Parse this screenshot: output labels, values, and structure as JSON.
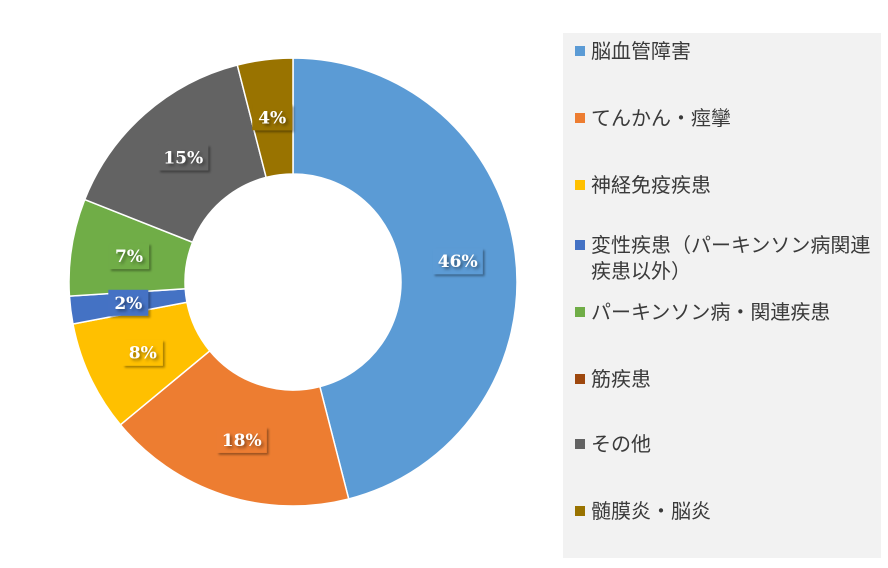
{
  "chart_data": {
    "type": "pie",
    "subtype": "donut",
    "start_angle_deg": 0,
    "direction": "clockwise",
    "legend_position": "right",
    "series": [
      {
        "name": "脳血管障害",
        "value": 46,
        "label": "46%",
        "color": "#5b9bd5"
      },
      {
        "name": "てんかん・痙攣",
        "value": 18,
        "label": "18%",
        "color": "#ed7d31"
      },
      {
        "name": "神経免疫疾患",
        "value": 8,
        "label": "8%",
        "color": "#ffc000"
      },
      {
        "name": "変性疾患（パーキンソン病関連疾患以外）",
        "value": 2,
        "label": "2%",
        "color": "#4472c4"
      },
      {
        "name": "パーキンソン病・関連疾患",
        "value": 7,
        "label": "7%",
        "color": "#70ad47"
      },
      {
        "name": "筋疾患",
        "value": 0,
        "label": "",
        "color": "#9e480e"
      },
      {
        "name": "その他",
        "value": 15,
        "label": "15%",
        "color": "#636363"
      },
      {
        "name": "髄膜炎・脳炎",
        "value": 4,
        "label": "4%",
        "color": "#997300"
      }
    ]
  }
}
